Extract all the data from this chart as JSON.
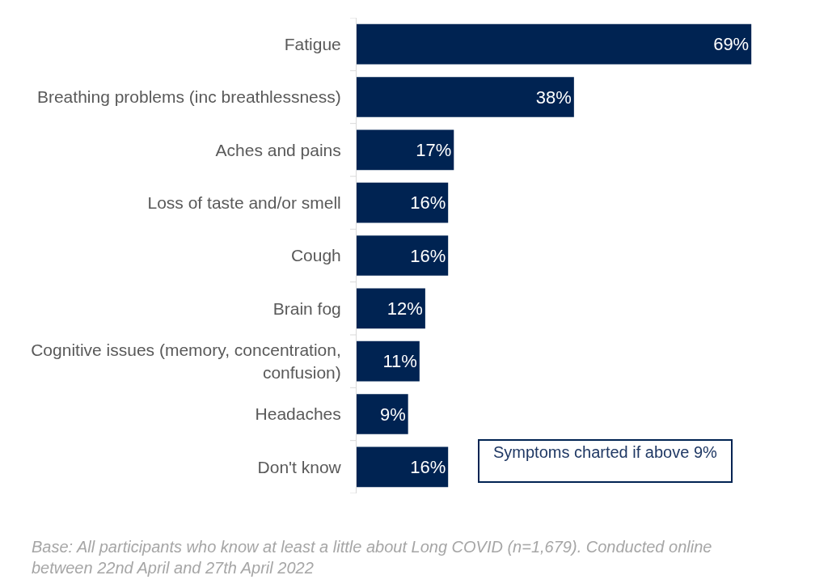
{
  "chart_data": {
    "type": "bar",
    "orientation": "horizontal",
    "categories": [
      "Fatigue",
      "Breathing problems (inc breathlessness)",
      "Aches and pains",
      "Loss of taste and/or smell",
      "Cough",
      "Brain fog",
      "Cognitive issues (memory, concentration, confusion)",
      "Headaches",
      "Don't know"
    ],
    "values": [
      69,
      38,
      17,
      16,
      16,
      12,
      11,
      9,
      16
    ],
    "value_labels": [
      "69%",
      "38%",
      "17%",
      "16%",
      "16%",
      "12%",
      "11%",
      "9%",
      "16%"
    ],
    "color": "#002352",
    "annotations": [
      "Symptoms charted if above 9%",
      "Base: All participants who know at least a little about Long COVID (n=1,679). Conducted online between 22nd April and 27th April 2022"
    ]
  }
}
